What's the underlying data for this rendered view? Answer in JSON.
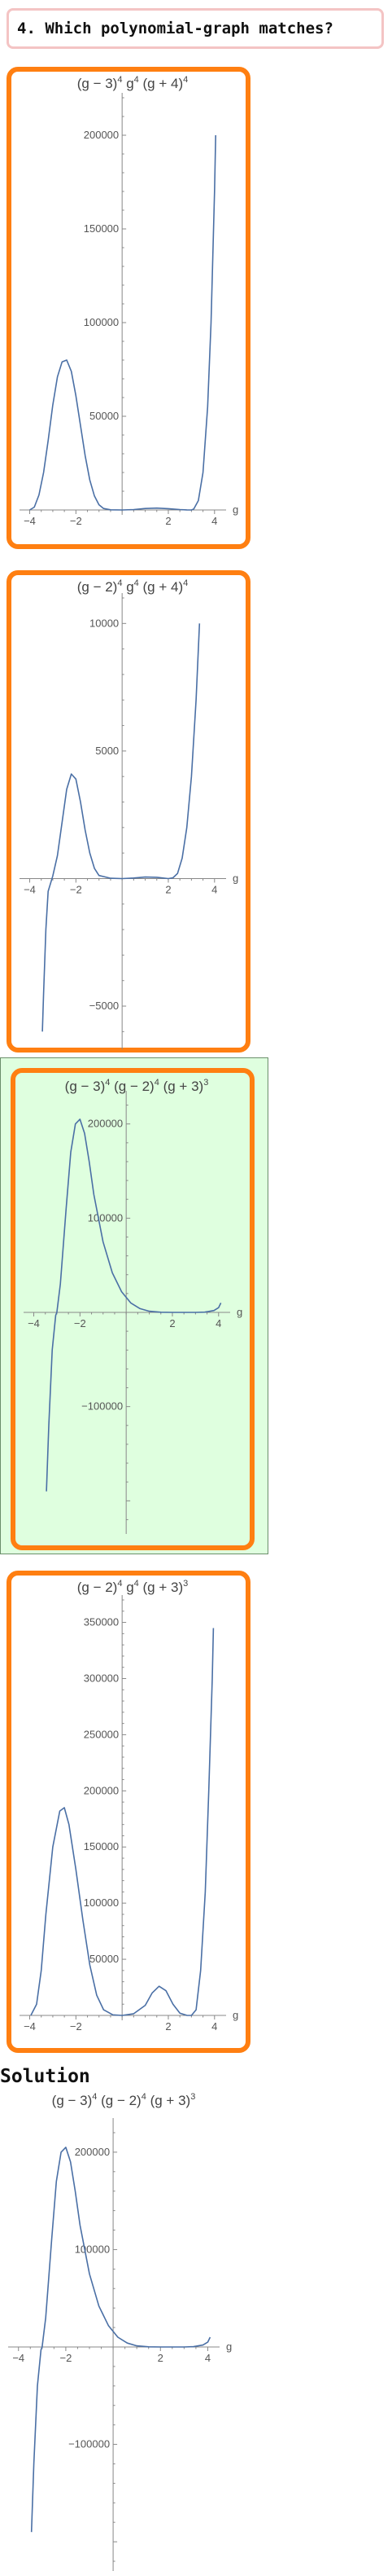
{
  "question": {
    "text": "4. Which polynomial-graph matches?"
  },
  "options": [
    {
      "id": "A",
      "selected": false,
      "title": {
        "base": "(g − 3)",
        "exp1": "4",
        "mid1": " g",
        "exp2": "4",
        "mid2": " (g + 4)",
        "exp3": "4"
      },
      "chart_data": {
        "type": "line",
        "x_var": "g",
        "x_ticks": [
          "−4",
          "−2",
          "2",
          "4"
        ],
        "y_ticks": [
          "50000",
          "100000",
          "150000",
          "200000"
        ],
        "xlim": [
          -4.3,
          4.5
        ],
        "ylim": [
          0,
          220000
        ],
        "points": [
          [
            -4,
            0
          ],
          [
            -3.8,
            1500
          ],
          [
            -3.6,
            8000
          ],
          [
            -3.4,
            20000
          ],
          [
            -3.2,
            37000
          ],
          [
            -3.0,
            56000
          ],
          [
            -2.8,
            71000
          ],
          [
            -2.6,
            79000
          ],
          [
            -2.4,
            80000
          ],
          [
            -2.2,
            74000
          ],
          [
            -2.0,
            61000
          ],
          [
            -1.8,
            45000
          ],
          [
            -1.6,
            29000
          ],
          [
            -1.4,
            16000
          ],
          [
            -1.2,
            7500
          ],
          [
            -1.0,
            2800
          ],
          [
            -0.8,
            800
          ],
          [
            -0.5,
            100
          ],
          [
            0,
            0
          ],
          [
            0.5,
            200
          ],
          [
            1,
            800
          ],
          [
            1.5,
            1000
          ],
          [
            2,
            700
          ],
          [
            2.5,
            200
          ],
          [
            2.8,
            40
          ],
          [
            3,
            0
          ],
          [
            3.1,
            500
          ],
          [
            3.3,
            5000
          ],
          [
            3.5,
            20000
          ],
          [
            3.7,
            55000
          ],
          [
            3.85,
            100000
          ],
          [
            4,
            170000
          ],
          [
            4.05,
            200000
          ]
        ]
      }
    },
    {
      "id": "B",
      "selected": false,
      "title": {
        "base": "(g − 2)",
        "exp1": "4",
        "mid1": " g",
        "exp2": "4",
        "mid2": " (g + 4)",
        "exp3": "4"
      },
      "chart_data": {
        "type": "line",
        "x_var": "g",
        "x_ticks": [
          "−4",
          "−2",
          "2",
          "4"
        ],
        "y_ticks": [
          "−5000",
          "5000",
          "10000"
        ],
        "xlim": [
          -4.3,
          4.5
        ],
        "ylim": [
          -6500,
          11000
        ],
        "points": [
          [
            -3.45,
            -6000
          ],
          [
            -3.4,
            -4500
          ],
          [
            -3.3,
            -2000
          ],
          [
            -3.2,
            -500
          ],
          [
            -3.0,
            100
          ],
          [
            -2.8,
            900
          ],
          [
            -2.6,
            2200
          ],
          [
            -2.4,
            3500
          ],
          [
            -2.2,
            4100
          ],
          [
            -2.0,
            3900
          ],
          [
            -1.8,
            3000
          ],
          [
            -1.6,
            1900
          ],
          [
            -1.4,
            1000
          ],
          [
            -1.2,
            400
          ],
          [
            -1.0,
            120
          ],
          [
            -0.5,
            10
          ],
          [
            0,
            0
          ],
          [
            0.5,
            20
          ],
          [
            1,
            60
          ],
          [
            1.5,
            50
          ],
          [
            2,
            0
          ],
          [
            2.2,
            30
          ],
          [
            2.4,
            200
          ],
          [
            2.6,
            800
          ],
          [
            2.8,
            2000
          ],
          [
            3,
            4000
          ],
          [
            3.2,
            7000
          ],
          [
            3.35,
            10000
          ]
        ]
      }
    },
    {
      "id": "C",
      "selected": true,
      "title": {
        "base": "(g − 3)",
        "exp1": "4",
        "mid1": " (g − 2)",
        "exp2": "4",
        "mid2": " (g + 3)",
        "exp3": "3"
      },
      "chart_data": {
        "type": "line",
        "x_var": "g",
        "x_ticks": [
          "−4",
          "−2",
          "2",
          "4"
        ],
        "y_ticks": [
          "−100000",
          "100000",
          "200000"
        ],
        "xlim": [
          -4.3,
          4.5
        ],
        "ylim": [
          -230000,
          230000
        ],
        "points": [
          [
            -3.45,
            -190000
          ],
          [
            -3.35,
            -120000
          ],
          [
            -3.2,
            -40000
          ],
          [
            -3.05,
            -3000
          ],
          [
            -3,
            0
          ],
          [
            -2.85,
            30000
          ],
          [
            -2.6,
            110000
          ],
          [
            -2.4,
            170000
          ],
          [
            -2.2,
            200000
          ],
          [
            -2.0,
            205000
          ],
          [
            -1.8,
            190000
          ],
          [
            -1.6,
            160000
          ],
          [
            -1.4,
            125000
          ],
          [
            -1.0,
            75000
          ],
          [
            -0.6,
            42000
          ],
          [
            -0.2,
            22000
          ],
          [
            0.2,
            10000
          ],
          [
            0.6,
            4000
          ],
          [
            1.0,
            1200
          ],
          [
            1.5,
            200
          ],
          [
            2,
            0
          ],
          [
            2.5,
            40
          ],
          [
            3,
            0
          ],
          [
            3.4,
            300
          ],
          [
            3.8,
            2000
          ],
          [
            4.0,
            5000
          ],
          [
            4.1,
            10000
          ]
        ]
      }
    },
    {
      "id": "D",
      "selected": false,
      "title": {
        "base": "(g − 2)",
        "exp1": "4",
        "mid1": " g",
        "exp2": "4",
        "mid2": " (g + 3)",
        "exp3": "3"
      },
      "chart_data": {
        "type": "line",
        "x_var": "g",
        "x_ticks": [
          "−4",
          "−2",
          "2",
          "4"
        ],
        "y_ticks": [
          "50000",
          "100000",
          "150000",
          "200000",
          "250000",
          "300000",
          "350000"
        ],
        "xlim": [
          -4.3,
          4.5
        ],
        "ylim": [
          0,
          370000
        ],
        "points": [
          [
            -3.95,
            0
          ],
          [
            -3.7,
            10000
          ],
          [
            -3.5,
            40000
          ],
          [
            -3.3,
            90000
          ],
          [
            -3.0,
            150000
          ],
          [
            -2.7,
            182000
          ],
          [
            -2.5,
            185000
          ],
          [
            -2.3,
            170000
          ],
          [
            -2.0,
            130000
          ],
          [
            -1.7,
            85000
          ],
          [
            -1.4,
            45000
          ],
          [
            -1.1,
            18000
          ],
          [
            -0.8,
            5000
          ],
          [
            -0.4,
            500
          ],
          [
            0,
            0
          ],
          [
            0.5,
            1500
          ],
          [
            1,
            9000
          ],
          [
            1.3,
            20000
          ],
          [
            1.6,
            26000
          ],
          [
            1.9,
            22000
          ],
          [
            2.2,
            10000
          ],
          [
            2.5,
            2000
          ],
          [
            2.8,
            100
          ],
          [
            3,
            0
          ],
          [
            3.2,
            5000
          ],
          [
            3.4,
            40000
          ],
          [
            3.6,
            110000
          ],
          [
            3.75,
            200000
          ],
          [
            3.9,
            300000
          ],
          [
            3.95,
            345000
          ]
        ]
      }
    }
  ],
  "solution": {
    "label": "Solution",
    "title": {
      "base": "(g − 3)",
      "exp1": "4",
      "mid1": " (g − 2)",
      "exp2": "4",
      "mid2": " (g + 3)",
      "exp3": "3"
    },
    "chart_data": {
      "type": "line",
      "x_var": "g",
      "x_ticks": [
        "−4",
        "−2",
        "2",
        "4"
      ],
      "y_ticks": [
        "−100000",
        "100000",
        "200000"
      ],
      "xlim": [
        -4.3,
        4.5
      ],
      "ylim": [
        -230000,
        230000
      ],
      "points": [
        [
          -3.45,
          -190000
        ],
        [
          -3.35,
          -120000
        ],
        [
          -3.2,
          -40000
        ],
        [
          -3.05,
          -3000
        ],
        [
          -3,
          0
        ],
        [
          -2.85,
          30000
        ],
        [
          -2.6,
          110000
        ],
        [
          -2.4,
          170000
        ],
        [
          -2.2,
          200000
        ],
        [
          -2.0,
          205000
        ],
        [
          -1.8,
          190000
        ],
        [
          -1.6,
          160000
        ],
        [
          -1.4,
          125000
        ],
        [
          -1.0,
          75000
        ],
        [
          -0.6,
          42000
        ],
        [
          -0.2,
          22000
        ],
        [
          0.2,
          10000
        ],
        [
          0.6,
          4000
        ],
        [
          1.0,
          1200
        ],
        [
          1.5,
          200
        ],
        [
          2,
          0
        ],
        [
          2.5,
          40
        ],
        [
          3,
          0
        ],
        [
          3.4,
          300
        ],
        [
          3.8,
          2000
        ],
        [
          4.0,
          5000
        ],
        [
          4.1,
          10000
        ]
      ]
    }
  },
  "colors": {
    "curve": "#4a6fa5",
    "axis": "#888888",
    "card_border": "#ff7f11",
    "selected_bg": "#dfffdf",
    "question_border": "#f4c4c4"
  }
}
